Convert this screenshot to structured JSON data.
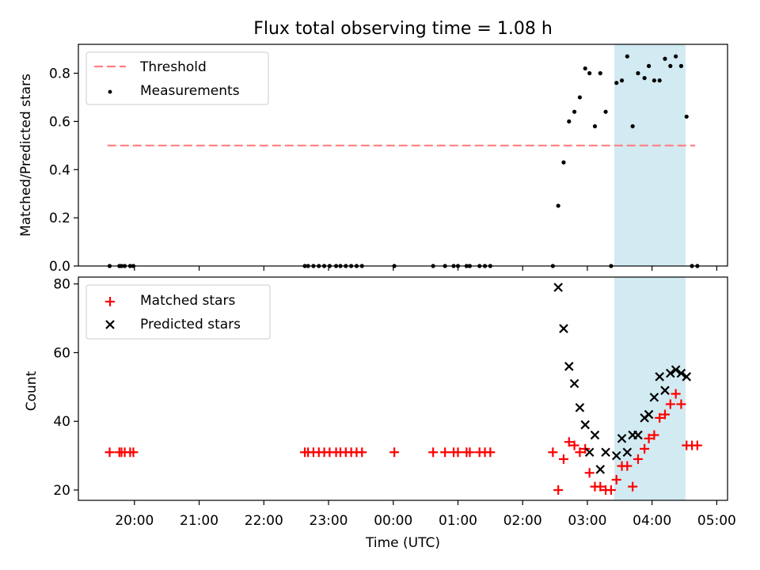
{
  "title": "Flux total observing time = 1.08 h",
  "colors": {
    "threshold": "#ff7f7f",
    "measurement": "#000000",
    "matched": "#ff0000",
    "predicted": "#000000",
    "highlight": "#add8e6"
  },
  "chart_data": [
    {
      "type": "scatter",
      "ylabel": "Matched/Predicted stars",
      "ylim": [
        0,
        0.92
      ],
      "yticks": [
        {
          "value": 0.0,
          "label": "0.0"
        },
        {
          "value": 0.2,
          "label": "0.2"
        },
        {
          "value": 0.4,
          "label": "0.4"
        },
        {
          "value": 0.6,
          "label": "0.6"
        },
        {
          "value": 0.8,
          "label": "0.8"
        }
      ],
      "legend_position": "top-left",
      "highlight_span": {
        "start": "03:25",
        "end": "04:31"
      },
      "threshold": {
        "name": "Threshold",
        "value": 0.5,
        "x_start": "19:35",
        "x_end": "04:40"
      },
      "series": [
        {
          "name": "Measurements",
          "points": [
            [
              "19:37",
              0
            ],
            [
              "19:46",
              0
            ],
            [
              "19:48",
              0
            ],
            [
              "19:51",
              0
            ],
            [
              "19:56",
              0
            ],
            [
              "19:59",
              0
            ],
            [
              "22:38",
              0
            ],
            [
              "22:41",
              0
            ],
            [
              "22:46",
              0
            ],
            [
              "22:51",
              0
            ],
            [
              "22:56",
              0
            ],
            [
              "23:01",
              0
            ],
            [
              "23:07",
              0
            ],
            [
              "23:11",
              0
            ],
            [
              "23:16",
              0
            ],
            [
              "23:21",
              0
            ],
            [
              "23:26",
              0
            ],
            [
              "23:31",
              0
            ],
            [
              "00:01",
              0
            ],
            [
              "00:37",
              0
            ],
            [
              "00:48",
              0
            ],
            [
              "00:56",
              0
            ],
            [
              "01:00",
              0
            ],
            [
              "01:08",
              0
            ],
            [
              "01:11",
              0
            ],
            [
              "01:20",
              0
            ],
            [
              "01:25",
              0
            ],
            [
              "01:30",
              0
            ],
            [
              "02:28",
              0
            ],
            [
              "02:33",
              0.25
            ],
            [
              "02:38",
              0.43
            ],
            [
              "02:43",
              0.6
            ],
            [
              "02:48",
              0.64
            ],
            [
              "02:53",
              0.7
            ],
            [
              "02:58",
              0.82
            ],
            [
              "03:02",
              0.8
            ],
            [
              "03:07",
              0.58
            ],
            [
              "03:12",
              0.8
            ],
            [
              "03:17",
              0.64
            ],
            [
              "03:22",
              0
            ],
            [
              "03:27",
              0.76
            ],
            [
              "03:32",
              0.77
            ],
            [
              "03:37",
              0.87
            ],
            [
              "03:42",
              0.58
            ],
            [
              "03:47",
              0.8
            ],
            [
              "03:53",
              0.78
            ],
            [
              "03:57",
              0.83
            ],
            [
              "04:02",
              0.77
            ],
            [
              "04:07",
              0.77
            ],
            [
              "04:12",
              0.86
            ],
            [
              "04:17",
              0.83
            ],
            [
              "04:22",
              0.87
            ],
            [
              "04:27",
              0.83
            ],
            [
              "04:32",
              0.62
            ],
            [
              "04:37",
              0
            ],
            [
              "04:42",
              0
            ]
          ]
        }
      ]
    },
    {
      "type": "scatter",
      "xlabel": "Time (UTC)",
      "ylabel": "Count",
      "ylim": [
        17,
        82
      ],
      "yticks": [
        {
          "value": 20,
          "label": "20"
        },
        {
          "value": 40,
          "label": "40"
        },
        {
          "value": 60,
          "label": "60"
        },
        {
          "value": 80,
          "label": "80"
        }
      ],
      "xticks": [
        "20:00",
        "21:00",
        "22:00",
        "23:00",
        "00:00",
        "01:00",
        "02:00",
        "03:00",
        "04:00",
        "05:00"
      ],
      "xlim": [
        "19:08",
        "05:10"
      ],
      "legend_position": "top-left",
      "highlight_span": {
        "start": "03:25",
        "end": "04:31"
      },
      "series": [
        {
          "name": "Matched stars",
          "points": [
            [
              "19:37",
              31
            ],
            [
              "19:46",
              31
            ],
            [
              "19:48",
              31
            ],
            [
              "19:51",
              31
            ],
            [
              "19:56",
              31
            ],
            [
              "19:59",
              31
            ],
            [
              "22:38",
              31
            ],
            [
              "22:41",
              31
            ],
            [
              "22:46",
              31
            ],
            [
              "22:51",
              31
            ],
            [
              "22:56",
              31
            ],
            [
              "23:01",
              31
            ],
            [
              "23:07",
              31
            ],
            [
              "23:11",
              31
            ],
            [
              "23:16",
              31
            ],
            [
              "23:21",
              31
            ],
            [
              "23:26",
              31
            ],
            [
              "23:31",
              31
            ],
            [
              "00:01",
              31
            ],
            [
              "00:37",
              31
            ],
            [
              "00:48",
              31
            ],
            [
              "00:56",
              31
            ],
            [
              "01:00",
              31
            ],
            [
              "01:08",
              31
            ],
            [
              "01:11",
              31
            ],
            [
              "01:20",
              31
            ],
            [
              "01:25",
              31
            ],
            [
              "01:30",
              31
            ],
            [
              "02:28",
              31
            ],
            [
              "02:33",
              20
            ],
            [
              "02:38",
              29
            ],
            [
              "02:43",
              34
            ],
            [
              "02:48",
              33
            ],
            [
              "02:53",
              31
            ],
            [
              "02:58",
              32
            ],
            [
              "03:02",
              25
            ],
            [
              "03:07",
              21
            ],
            [
              "03:12",
              21
            ],
            [
              "03:17",
              20
            ],
            [
              "03:22",
              20
            ],
            [
              "03:27",
              23
            ],
            [
              "03:32",
              27
            ],
            [
              "03:37",
              27
            ],
            [
              "03:42",
              21
            ],
            [
              "03:47",
              29
            ],
            [
              "03:53",
              32
            ],
            [
              "03:57",
              35
            ],
            [
              "04:02",
              36
            ],
            [
              "04:07",
              41
            ],
            [
              "04:12",
              42
            ],
            [
              "04:17",
              45
            ],
            [
              "04:22",
              48
            ],
            [
              "04:27",
              45
            ],
            [
              "04:32",
              33
            ],
            [
              "04:37",
              33
            ],
            [
              "04:42",
              33
            ]
          ]
        },
        {
          "name": "Predicted stars",
          "points": [
            [
              "02:33",
              79
            ],
            [
              "02:38",
              67
            ],
            [
              "02:43",
              56
            ],
            [
              "02:48",
              51
            ],
            [
              "02:53",
              44
            ],
            [
              "02:58",
              39
            ],
            [
              "03:02",
              31
            ],
            [
              "03:07",
              36
            ],
            [
              "03:12",
              26
            ],
            [
              "03:17",
              31
            ],
            [
              "03:27",
              30
            ],
            [
              "03:32",
              35
            ],
            [
              "03:37",
              31
            ],
            [
              "03:42",
              36
            ],
            [
              "03:47",
              36
            ],
            [
              "03:53",
              41
            ],
            [
              "03:57",
              42
            ],
            [
              "04:02",
              47
            ],
            [
              "04:07",
              53
            ],
            [
              "04:12",
              49
            ],
            [
              "04:17",
              54
            ],
            [
              "04:22",
              55
            ],
            [
              "04:27",
              54
            ],
            [
              "04:32",
              53
            ]
          ]
        }
      ]
    }
  ]
}
